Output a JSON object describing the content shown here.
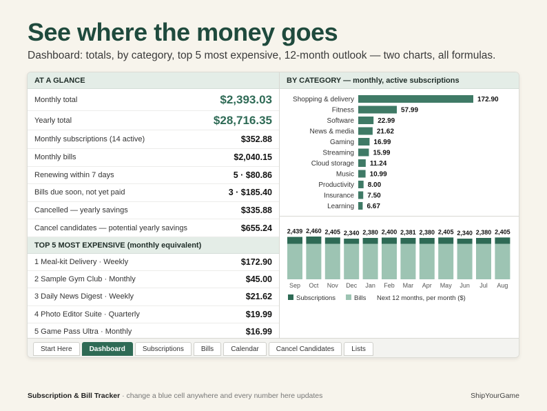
{
  "header": {
    "title": "See where the money goes",
    "subtitle": "Dashboard: totals, by category, top 5 most expensive, 12-month outlook — two charts, all formulas."
  },
  "glance": {
    "heading": "AT A GLANCE",
    "rows": [
      {
        "label": "Monthly total",
        "value": "$2,393.03"
      },
      {
        "label": "Yearly total",
        "value": "$28,716.35"
      },
      {
        "label": "Monthly subscriptions (14 active)",
        "value": "$352.88"
      },
      {
        "label": "Monthly bills",
        "value": "$2,040.15"
      },
      {
        "label": "Renewing within 7 days",
        "value": "5 · $80.86"
      },
      {
        "label": "Bills due soon, not yet paid",
        "value": "3 · $185.40"
      },
      {
        "label": "Cancelled — yearly savings",
        "value": "$335.88"
      },
      {
        "label": "Cancel candidates — potential yearly savings",
        "value": "$655.24"
      }
    ]
  },
  "top5": {
    "heading": "TOP 5 MOST EXPENSIVE (monthly equivalent)",
    "rows": [
      {
        "label": "1  Meal-kit Delivery · Weekly",
        "value": "$172.90"
      },
      {
        "label": "2  Sample Gym Club · Monthly",
        "value": "$45.00"
      },
      {
        "label": "3  Daily News Digest · Weekly",
        "value": "$21.62"
      },
      {
        "label": "4  Photo Editor Suite · Quarterly",
        "value": "$19.99"
      },
      {
        "label": "5  Game Pass Ultra · Monthly",
        "value": "$16.99"
      }
    ]
  },
  "category": {
    "heading": "BY CATEGORY — monthly, active subscriptions"
  },
  "tabs": [
    "Start Here",
    "Dashboard",
    "Subscriptions",
    "Bills",
    "Calendar",
    "Cancel Candidates",
    "Lists"
  ],
  "active_tab": "Dashboard",
  "footer": {
    "brand": "Subscription & Bill Tracker",
    "note": " · change a blue cell anywhere and every number here updates",
    "credit": "ShipYourGame"
  },
  "colors": {
    "accent": "#2e6a55",
    "bills": "#9dc4b3",
    "header_bg": "#e4ede7"
  },
  "chart_data": [
    {
      "type": "bar",
      "orientation": "horizontal",
      "categories": [
        "Shopping & delivery",
        "Fitness",
        "Software",
        "News & media",
        "Gaming",
        "Streaming",
        "Cloud storage",
        "Music",
        "Productivity",
        "Insurance",
        "Learning"
      ],
      "values": [
        172.9,
        57.99,
        22.99,
        21.62,
        16.99,
        15.99,
        11.24,
        10.99,
        8.0,
        7.5,
        6.67
      ],
      "labels": [
        "172.90",
        "57.99",
        "22.99",
        "21.62",
        "16.99",
        "15.99",
        "11.24",
        "10.99",
        "8.00",
        "7.50",
        "6.67"
      ],
      "color": "#3f7a66"
    },
    {
      "type": "bar",
      "stacked": true,
      "categories": [
        "Sep",
        "Oct",
        "Nov",
        "Dec",
        "Jan",
        "Feb",
        "Mar",
        "Apr",
        "May",
        "Jun",
        "Jul",
        "Aug"
      ],
      "totals": [
        2439,
        2460,
        2405,
        2340,
        2380,
        2400,
        2381,
        2380,
        2405,
        2340,
        2380,
        2405
      ],
      "total_labels": [
        "2,439",
        "2,460",
        "2,405",
        "2,340",
        "2,380",
        "2,400",
        "2,381",
        "2,380",
        "2,405",
        "2,340",
        "2,380",
        "2,405"
      ],
      "series": [
        {
          "name": "Subscriptions",
          "color": "#2e6a55",
          "values": [
            399,
            420,
            365,
            300,
            340,
            360,
            341,
            340,
            365,
            300,
            340,
            365
          ]
        },
        {
          "name": "Bills",
          "color": "#9dc4b3",
          "values": [
            2040,
            2040,
            2040,
            2040,
            2040,
            2040,
            2040,
            2040,
            2040,
            2040,
            2040,
            2040
          ]
        }
      ],
      "note": "Next 12 months, per month ($)",
      "legend": "bottom-left"
    }
  ]
}
